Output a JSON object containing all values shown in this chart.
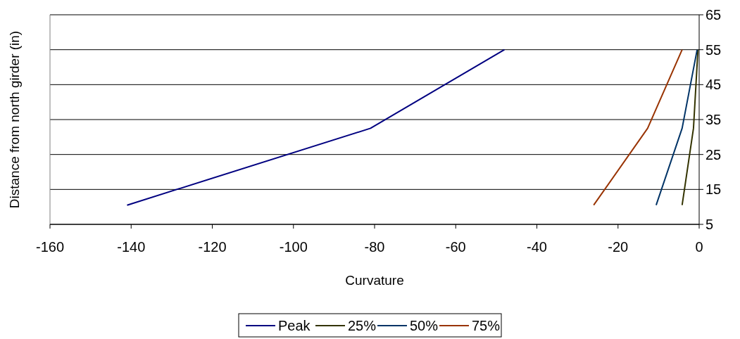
{
  "chart_data": {
    "type": "line",
    "xlabel": "Curvature",
    "ylabel": "Distance from north girder (in)",
    "xlim": [
      -160,
      0
    ],
    "xticks": [
      -160,
      -140,
      -120,
      -100,
      -80,
      -60,
      -40,
      -20,
      0
    ],
    "ylim": [
      5,
      65
    ],
    "yticks": [
      5,
      15,
      25,
      35,
      45,
      55,
      65
    ],
    "grid": "y",
    "legend": "bottom",
    "marker": "none",
    "line_style": "solid",
    "series": [
      {
        "name": "Peak",
        "color": "#000080",
        "x": [
          -141,
          -81,
          -48
        ],
        "values": [
          10.5,
          32.5,
          55
        ]
      },
      {
        "name": "25%",
        "color": "#333300",
        "x": [
          -4.2,
          -1.4,
          -0.3
        ],
        "values": [
          10.5,
          32.5,
          55
        ]
      },
      {
        "name": "50%",
        "color": "#003366",
        "x": [
          -10.6,
          -4.2,
          -0.5
        ],
        "values": [
          10.5,
          32.5,
          55
        ]
      },
      {
        "name": "75%",
        "color": "#993300",
        "x": [
          -26,
          -12.7,
          -4.2
        ],
        "values": [
          10.5,
          32.5,
          55
        ]
      }
    ]
  }
}
